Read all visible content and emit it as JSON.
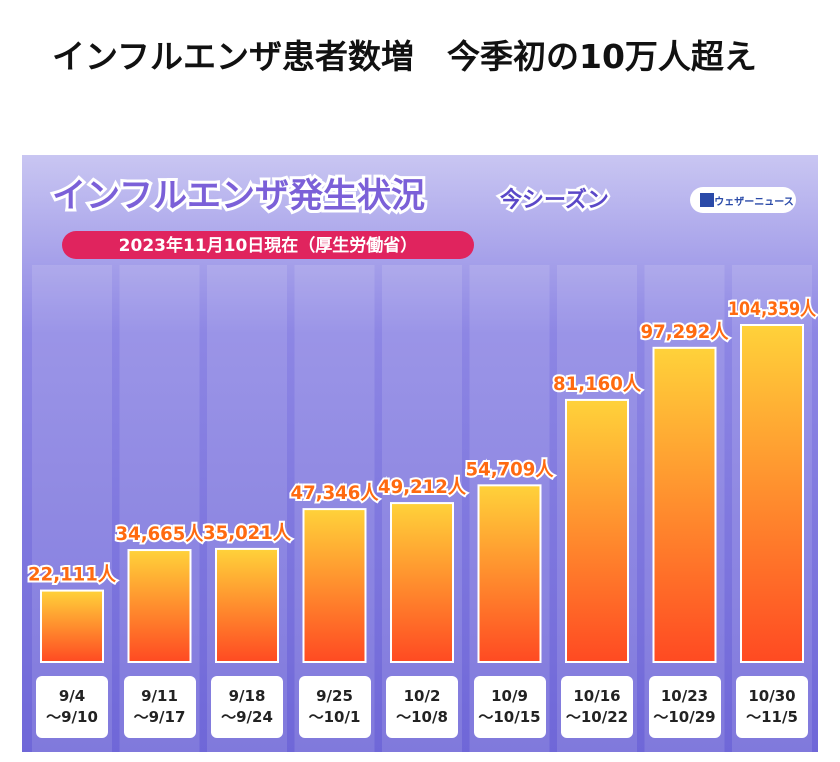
{
  "header": {
    "title": "インフルエンザ患者数増　今季初の10万人超え"
  },
  "chart_data": {
    "type": "bar",
    "title": "インフルエンザ発生状況",
    "subtitle": "今シーズン",
    "note": "2023年11月10日現在（厚生労働省）",
    "source": "ウェザーニュース",
    "categories": [
      "9/4\n～9/10",
      "9/11\n～9/17",
      "9/18\n～9/24",
      "9/25\n～10/1",
      "10/2\n～10/8",
      "10/9\n～10/15",
      "10/16\n～10/22",
      "10/23\n～10/29",
      "10/30\n～11/5"
    ],
    "values": [
      22111,
      34665,
      35021,
      47346,
      49212,
      54709,
      81160,
      97292,
      104359
    ],
    "value_labels": [
      "22,111人",
      "34,665人",
      "35,021人",
      "47,346人",
      "49,212人",
      "54,709人",
      "81,160人",
      "97,292人",
      "104,359人"
    ],
    "color": "#ff8a1c"
  }
}
